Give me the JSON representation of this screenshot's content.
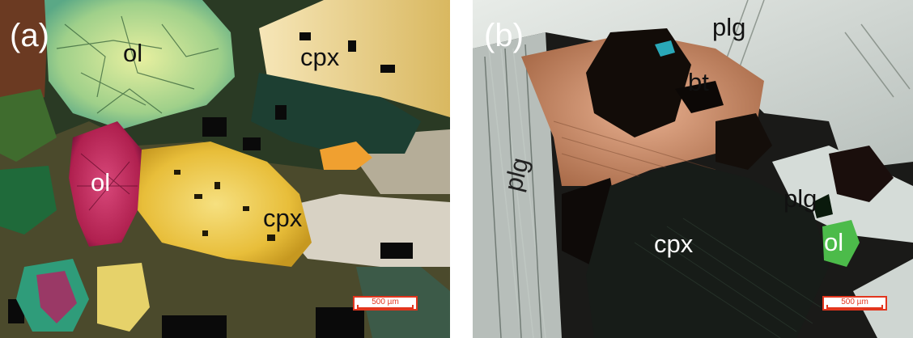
{
  "panels": [
    {
      "label": "(a)",
      "labels": [
        "ol",
        "cpx",
        "ol",
        "cpx"
      ],
      "scale": "500 µm"
    },
    {
      "label": "(b)",
      "labels": [
        "plg",
        "bt",
        "plg",
        "plg",
        "cpx",
        "ol"
      ],
      "scale": "500 µm"
    }
  ]
}
